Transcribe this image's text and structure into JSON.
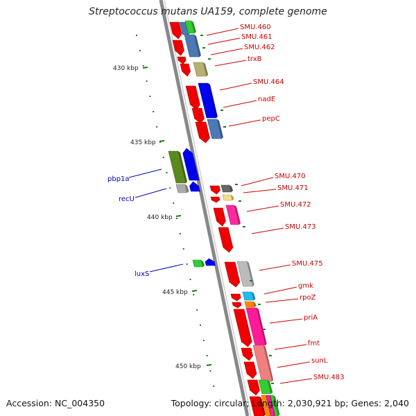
{
  "title": "Streptococcus mutans UA159, complete genome",
  "footer": {
    "accession": "Accession: NC_004350",
    "topology": "Topology: circular; Length: 2,030,921 bp; Genes: 2,040"
  },
  "ticks": [
    "430 kbp",
    "435 kbp",
    "440 kbp",
    "445 kbp",
    "450 kbp"
  ],
  "colors": {
    "forward_label": "#cc0000",
    "reverse_label": "#0000bb",
    "backbone": "#888888",
    "tick": "#1a7a1a"
  },
  "labels_right": [
    "SMU.460",
    "SMU.461",
    "SMU.462",
    "trxB",
    "SMU.464",
    "nadE",
    "pepC",
    "SMU.470",
    "SMU.471",
    "SMU.472",
    "SMU.473",
    "SMU.475",
    "gmk",
    "rpoZ",
    "priA",
    "fmt",
    "sunL",
    "SMU.483"
  ],
  "labels_left": [
    "pbp1a",
    "recU",
    "luxS"
  ]
}
